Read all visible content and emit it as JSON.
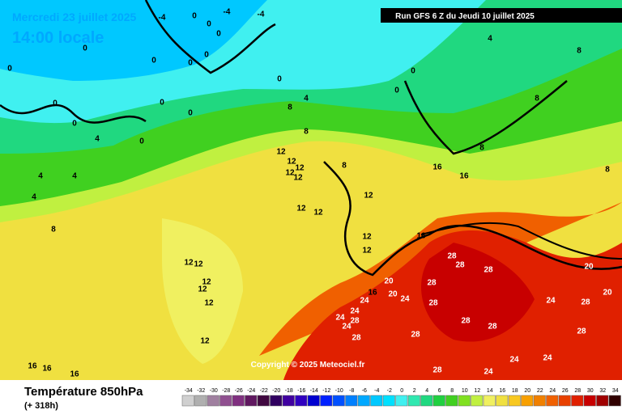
{
  "header": {
    "date": "Mercredi 23 juillet 2025",
    "time": "14:00 locale",
    "run": "Run GFS 6 Z du Jeudi 10 juillet 2025"
  },
  "footer": {
    "title": "Température 850hPa",
    "lead": "(+ 318h)",
    "copyright": "Copyright © 2025 Meteociel.fr"
  },
  "legend": {
    "values": [
      -34,
      -32,
      -30,
      -28,
      -26,
      -24,
      -22,
      -20,
      -18,
      -16,
      -14,
      -12,
      -10,
      -8,
      -6,
      -4,
      -2,
      0,
      2,
      4,
      6,
      8,
      10,
      12,
      14,
      16,
      18,
      20,
      22,
      24,
      26,
      28,
      30,
      32,
      34
    ],
    "colors": [
      "#d0d0d0",
      "#b0b0b0",
      "#a080a0",
      "#905090",
      "#803080",
      "#601860",
      "#400840",
      "#300060",
      "#4000a0",
      "#3000c0",
      "#0000d0",
      "#0020ff",
      "#0050ff",
      "#0080ff",
      "#00a8ff",
      "#00c8ff",
      "#00e0ff",
      "#40f0f0",
      "#30e8b0",
      "#20d880",
      "#20d040",
      "#40d020",
      "#80e020",
      "#c0f040",
      "#f0f060",
      "#f0e040",
      "#f8c820",
      "#f8a000",
      "#f08000",
      "#f06000",
      "#e84000",
      "#e02000",
      "#c80000",
      "#a00000",
      "#300000"
    ]
  },
  "isotherm_labels": [
    -4,
    -4,
    -4,
    0,
    0,
    0,
    0,
    0,
    0,
    0,
    0,
    0,
    0,
    0,
    0,
    0,
    0,
    0,
    0,
    4,
    4,
    4,
    4,
    4,
    4,
    8,
    8,
    8,
    8,
    8,
    8,
    8,
    8,
    12,
    12,
    12,
    12,
    12,
    12,
    12,
    12,
    12,
    12,
    12,
    12,
    12,
    12,
    12,
    12,
    16,
    16,
    16,
    16,
    16,
    16,
    16,
    20,
    20,
    20,
    20,
    24,
    24,
    24,
    24,
    24,
    24,
    24,
    24,
    24,
    28,
    28,
    28,
    28,
    28,
    28,
    28,
    28,
    28,
    28,
    28,
    28,
    28
  ]
}
